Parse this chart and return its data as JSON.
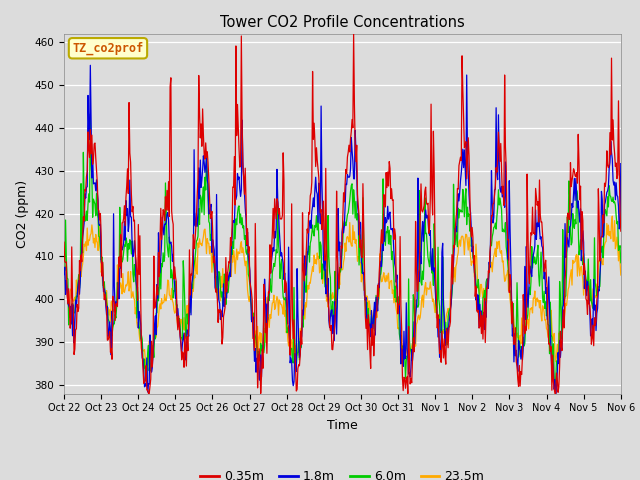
{
  "title": "Tower CO2 Profile Concentrations",
  "xlabel": "Time",
  "ylabel": "CO2 (ppm)",
  "ylim": [
    378,
    462
  ],
  "yticks": [
    380,
    390,
    400,
    410,
    420,
    430,
    440,
    450,
    460
  ],
  "annotation_text": "TZ_co2prof",
  "annotation_bg": "#ffffcc",
  "annotation_border": "#bbaa00",
  "colors": {
    "0.35m": "#dd0000",
    "1.8m": "#0000dd",
    "6.0m": "#00cc00",
    "23.5m": "#ffaa00"
  },
  "legend_labels": [
    "0.35m",
    "1.8m",
    "6.0m",
    "23.5m"
  ],
  "x_tick_labels": [
    "Oct 22",
    "Oct 23",
    "Oct 24",
    "Oct 25",
    "Oct 26",
    "Oct 27",
    "Oct 28",
    "Oct 29",
    "Oct 30",
    "Oct 31",
    "Nov 1",
    "Nov 2",
    "Nov 3",
    "Nov 4",
    "Nov 5",
    "Nov 6"
  ],
  "axes_bg": "#dcdcdc",
  "fig_bg": "#dcdcdc",
  "grid_color": "#ffffff",
  "seed": 42
}
